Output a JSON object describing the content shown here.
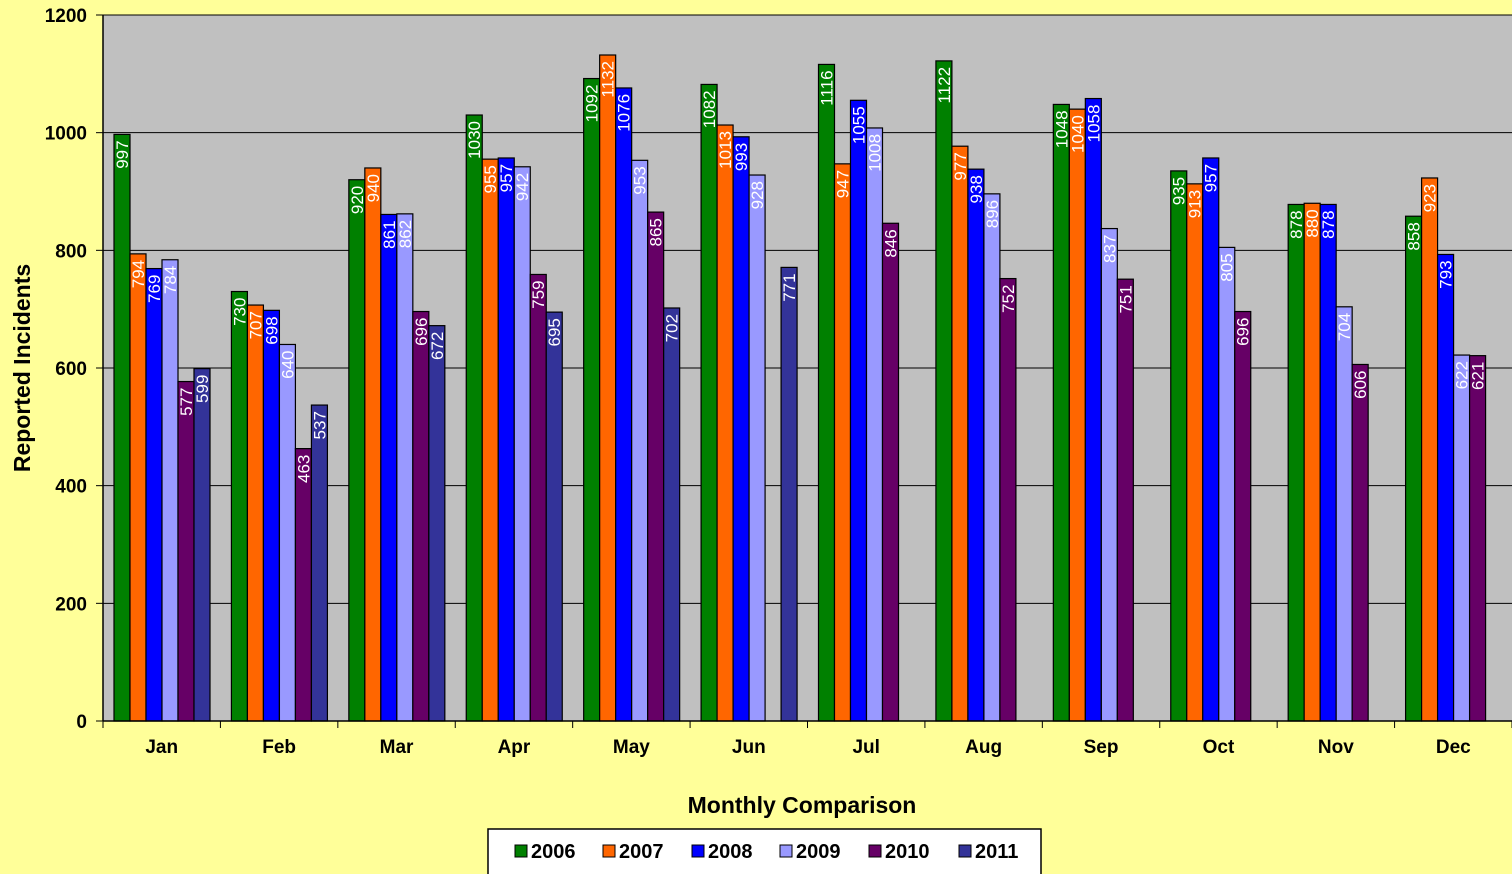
{
  "chart_data": {
    "type": "bar",
    "xlabel": "Monthly Comparison",
    "ylabel": "Reported Incidents",
    "ylim": [
      0,
      1200
    ],
    "yticks": [
      0,
      200,
      400,
      600,
      800,
      1000,
      1200
    ],
    "grid": true,
    "legend_position": "bottom",
    "categories": [
      "Jan",
      "Feb",
      "Mar",
      "Apr",
      "May",
      "Jun",
      "Jul",
      "Aug",
      "Sep",
      "Oct",
      "Nov",
      "Dec"
    ],
    "series": [
      {
        "name": "2006",
        "color": "#008000",
        "values": [
          997,
          730,
          920,
          1030,
          1092,
          1082,
          1116,
          1122,
          1048,
          935,
          878,
          858
        ]
      },
      {
        "name": "2007",
        "color": "#ff6600",
        "values": [
          794,
          707,
          940,
          955,
          1132,
          1013,
          947,
          977,
          1040,
          913,
          880,
          923
        ]
      },
      {
        "name": "2008",
        "color": "#0000ff",
        "values": [
          769,
          698,
          861,
          957,
          1076,
          993,
          1055,
          938,
          1058,
          957,
          878,
          793
        ]
      },
      {
        "name": "2009",
        "color": "#9999ff",
        "values": [
          784,
          640,
          862,
          942,
          953,
          928,
          1008,
          896,
          837,
          805,
          704,
          622
        ]
      },
      {
        "name": "2010",
        "color": "#660066",
        "values": [
          577,
          463,
          696,
          759,
          865,
          null,
          846,
          752,
          751,
          696,
          606,
          621
        ]
      },
      {
        "name": "2011",
        "color": "#333399",
        "values": [
          599,
          537,
          672,
          695,
          702,
          771,
          null,
          null,
          null,
          null,
          null,
          null
        ]
      }
    ]
  }
}
